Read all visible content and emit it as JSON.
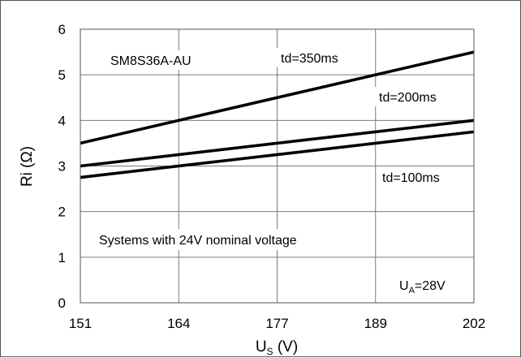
{
  "chart_data": {
    "type": "line",
    "title": "",
    "xlabel": "U",
    "xlabel_subscript": "S",
    "xlabel_unit": " (V)",
    "ylabel": "Ri (Ω)",
    "x_ticks": [
      "151",
      "164",
      "177",
      "189",
      "202"
    ],
    "y_ticks": [
      "0",
      "1",
      "2",
      "3",
      "4",
      "5",
      "6"
    ],
    "xlim": [
      151,
      202
    ],
    "ylim": [
      0,
      6
    ],
    "grid": true,
    "legend": "none",
    "series": [
      {
        "name": "td=350ms",
        "x": [
          151,
          202
        ],
        "y": [
          3.5,
          5.5
        ]
      },
      {
        "name": "td=200ms",
        "x": [
          151,
          202
        ],
        "y": [
          3.0,
          4.0
        ]
      },
      {
        "name": "td=100ms",
        "x": [
          151,
          202
        ],
        "y": [
          2.75,
          3.75
        ]
      }
    ],
    "annotations": {
      "part_number": "SM8S36A-AU",
      "system_note": "Systems with 24V nominal voltage",
      "ua_label_main": "U",
      "ua_label_sub": "A",
      "ua_label_value": "=28V"
    }
  },
  "colors": {
    "line": "#000000",
    "grid": "#7a7a7a",
    "background": "#ffffff"
  }
}
